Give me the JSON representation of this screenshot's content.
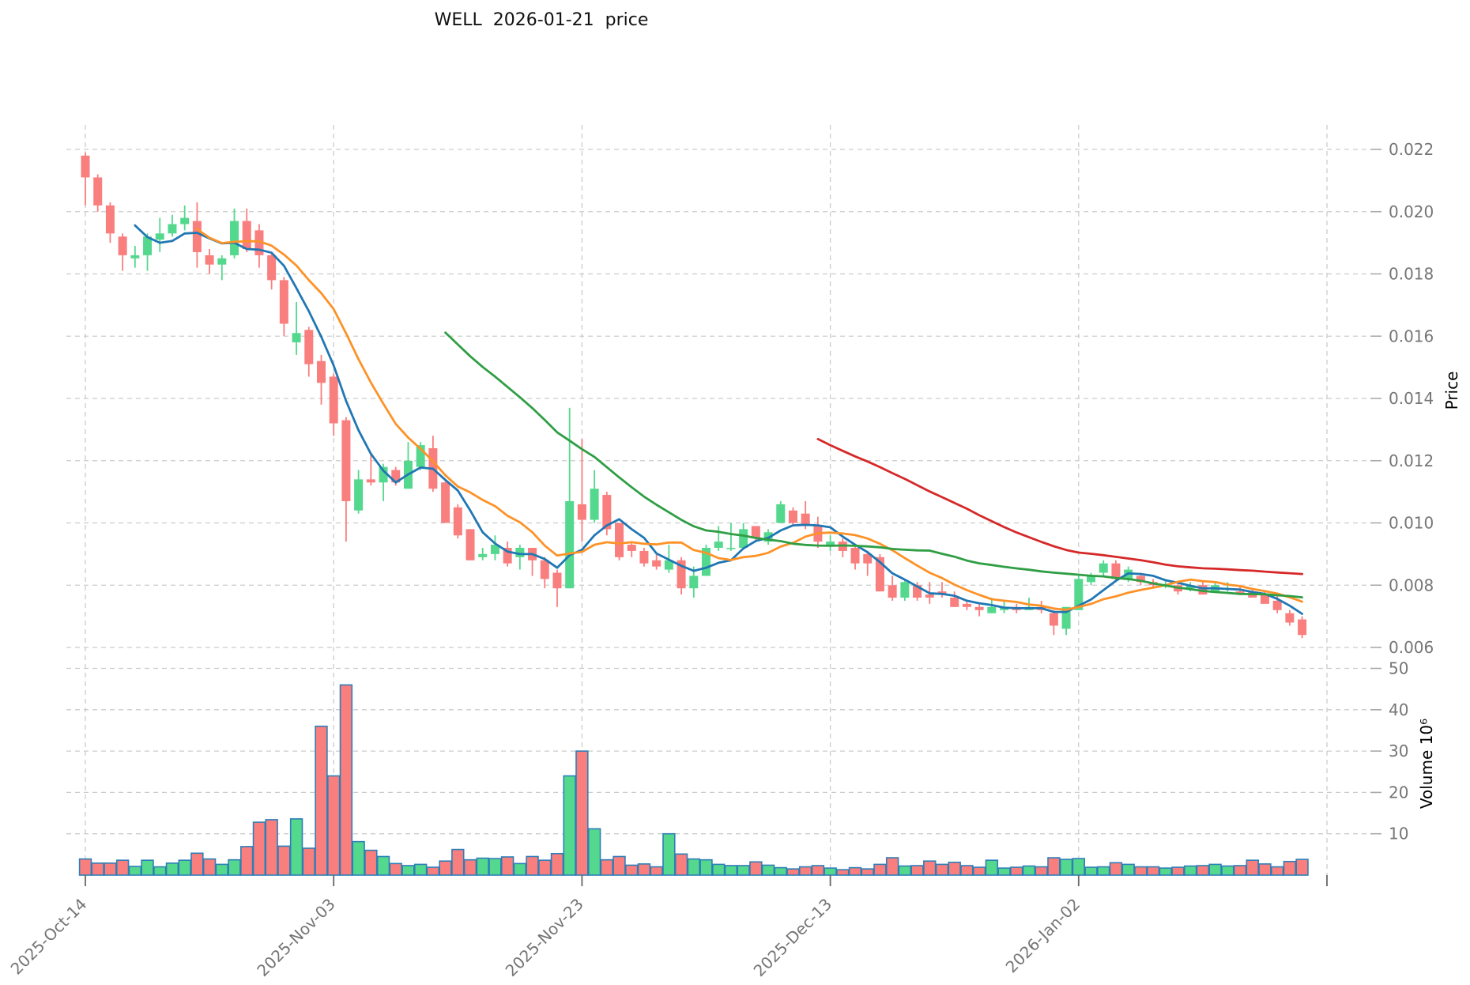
{
  "title": "WELL  2026-01-21  price",
  "axes": {
    "price_label": "Price",
    "volume_label": "Volume 10⁶",
    "price_ticks": [
      "0.022",
      "0.020",
      "0.018",
      "0.016",
      "0.014",
      "0.012",
      "0.010",
      "0.008",
      "0.006"
    ],
    "volume_ticks": [
      "50",
      "40",
      "30",
      "20",
      "10"
    ],
    "x_ticks": [
      {
        "index": 0,
        "label": "2025-Oct-14"
      },
      {
        "index": 20,
        "label": "2025-Nov-03"
      },
      {
        "index": 40,
        "label": "2025-Nov-23"
      },
      {
        "index": 60,
        "label": "2025-Dec-13"
      },
      {
        "index": 80,
        "label": "2026-Jan-02"
      },
      {
        "index": 100,
        "label": ""
      }
    ]
  },
  "chart_data": {
    "type": "candlestick+volume",
    "title": "WELL  2026-01-21  price",
    "ylabel": "Price",
    "ylabel_lower": "Volume 10⁶",
    "price_axis": {
      "tick_values": [
        0.022,
        0.02,
        0.018,
        0.016,
        0.014,
        0.012,
        0.01,
        0.008,
        0.006
      ],
      "grid": true
    },
    "volume_axis": {
      "tick_values": [
        50,
        40,
        30,
        20,
        10
      ],
      "unit": "millions",
      "grid": true
    },
    "legend_position": "none",
    "colors": {
      "up": "#54d88d",
      "down": "#f97e7e",
      "volume_edge": "#2e7eb8",
      "grid": "#cccccc",
      "tick_text": "#757575",
      "title_text": "#111111"
    },
    "moving_averages": [
      {
        "window": 5,
        "color": "#2077b4"
      },
      {
        "window": 10,
        "color": "#fd9227"
      },
      {
        "window": 30,
        "color": "#2f9e44"
      },
      {
        "window": 60,
        "color": "#d62828"
      }
    ],
    "dates": [
      "2025-10-14",
      "2025-10-15",
      "2025-10-16",
      "2025-10-17",
      "2025-10-18",
      "2025-10-19",
      "2025-10-20",
      "2025-10-21",
      "2025-10-22",
      "2025-10-23",
      "2025-10-24",
      "2025-10-25",
      "2025-10-26",
      "2025-10-27",
      "2025-10-28",
      "2025-10-29",
      "2025-10-30",
      "2025-10-31",
      "2025-11-01",
      "2025-11-02",
      "2025-11-03",
      "2025-11-04",
      "2025-11-05",
      "2025-11-06",
      "2025-11-07",
      "2025-11-08",
      "2025-11-09",
      "2025-11-10",
      "2025-11-11",
      "2025-11-12",
      "2025-11-13",
      "2025-11-14",
      "2025-11-15",
      "2025-11-16",
      "2025-11-17",
      "2025-11-18",
      "2025-11-19",
      "2025-11-20",
      "2025-11-21",
      "2025-11-22",
      "2025-11-23",
      "2025-11-24",
      "2025-11-25",
      "2025-11-26",
      "2025-11-27",
      "2025-11-28",
      "2025-11-29",
      "2025-11-30",
      "2025-12-01",
      "2025-12-02",
      "2025-12-03",
      "2025-12-04",
      "2025-12-05",
      "2025-12-06",
      "2025-12-07",
      "2025-12-08",
      "2025-12-09",
      "2025-12-10",
      "2025-12-11",
      "2025-12-12",
      "2025-12-13",
      "2025-12-14",
      "2025-12-15",
      "2025-12-16",
      "2025-12-17",
      "2025-12-18",
      "2025-12-19",
      "2025-12-20",
      "2025-12-21",
      "2025-12-22",
      "2025-12-23",
      "2025-12-24",
      "2025-12-25",
      "2025-12-26",
      "2025-12-27",
      "2025-12-28",
      "2025-12-29",
      "2025-12-30",
      "2025-12-31",
      "2026-01-01",
      "2026-01-02",
      "2026-01-03",
      "2026-01-04",
      "2026-01-05",
      "2026-01-06",
      "2026-01-07",
      "2026-01-08",
      "2026-01-09",
      "2026-01-10",
      "2026-01-11",
      "2026-01-12",
      "2026-01-13",
      "2026-01-14",
      "2026-01-15",
      "2026-01-16",
      "2026-01-17",
      "2026-01-18",
      "2026-01-19",
      "2026-01-20"
    ],
    "ohlc": [
      [
        0.0218,
        0.0219,
        0.0202,
        0.0211
      ],
      [
        0.0211,
        0.0212,
        0.02,
        0.0202
      ],
      [
        0.0202,
        0.0203,
        0.019,
        0.0193
      ],
      [
        0.0192,
        0.0193,
        0.0181,
        0.0186
      ],
      [
        0.0185,
        0.0189,
        0.0182,
        0.0186
      ],
      [
        0.0186,
        0.0193,
        0.0181,
        0.0192
      ],
      [
        0.0191,
        0.0198,
        0.0187,
        0.0193
      ],
      [
        0.0193,
        0.0199,
        0.0192,
        0.0196
      ],
      [
        0.0196,
        0.0202,
        0.0194,
        0.0198
      ],
      [
        0.0197,
        0.0203,
        0.0182,
        0.0187
      ],
      [
        0.0186,
        0.0188,
        0.018,
        0.0183
      ],
      [
        0.0183,
        0.0186,
        0.0178,
        0.0185
      ],
      [
        0.0186,
        0.0201,
        0.0185,
        0.0197
      ],
      [
        0.0197,
        0.0201,
        0.0187,
        0.0188
      ],
      [
        0.0194,
        0.0196,
        0.0182,
        0.0186
      ],
      [
        0.0186,
        0.0187,
        0.0175,
        0.0178
      ],
      [
        0.0178,
        0.0179,
        0.016,
        0.0164
      ],
      [
        0.0158,
        0.0171,
        0.0154,
        0.0161
      ],
      [
        0.0162,
        0.0163,
        0.0147,
        0.0151
      ],
      [
        0.0152,
        0.0154,
        0.0138,
        0.0145
      ],
      [
        0.0147,
        0.0148,
        0.0128,
        0.0132
      ],
      [
        0.0133,
        0.0134,
        0.0094,
        0.0107
      ],
      [
        0.0104,
        0.0117,
        0.0103,
        0.0114
      ],
      [
        0.0114,
        0.0122,
        0.0112,
        0.0113
      ],
      [
        0.0113,
        0.0119,
        0.0107,
        0.0118
      ],
      [
        0.0117,
        0.0118,
        0.0112,
        0.0113
      ],
      [
        0.0111,
        0.0126,
        0.0111,
        0.012
      ],
      [
        0.0118,
        0.0126,
        0.0117,
        0.0125
      ],
      [
        0.0124,
        0.0128,
        0.011,
        0.0111
      ],
      [
        0.0113,
        0.0114,
        0.01,
        0.01
      ],
      [
        0.0105,
        0.0106,
        0.0095,
        0.0096
      ],
      [
        0.0098,
        0.0098,
        0.0088,
        0.0088
      ],
      [
        0.0089,
        0.0092,
        0.0088,
        0.009
      ],
      [
        0.009,
        0.0096,
        0.0088,
        0.0093
      ],
      [
        0.0092,
        0.0094,
        0.0086,
        0.0087
      ],
      [
        0.0089,
        0.0093,
        0.0085,
        0.0092
      ],
      [
        0.0092,
        0.0092,
        0.0083,
        0.0088
      ],
      [
        0.0088,
        0.0089,
        0.0079,
        0.0082
      ],
      [
        0.0084,
        0.0085,
        0.0073,
        0.0079
      ],
      [
        0.0079,
        0.0137,
        0.0079,
        0.0107
      ],
      [
        0.0106,
        0.0127,
        0.0094,
        0.0101
      ],
      [
        0.0101,
        0.0117,
        0.01,
        0.0111
      ],
      [
        0.0109,
        0.011,
        0.0096,
        0.0098
      ],
      [
        0.01,
        0.01,
        0.0088,
        0.0089
      ],
      [
        0.0093,
        0.0094,
        0.0089,
        0.0091
      ],
      [
        0.0091,
        0.0092,
        0.0086,
        0.0087
      ],
      [
        0.0088,
        0.009,
        0.0085,
        0.0086
      ],
      [
        0.0085,
        0.0093,
        0.0084,
        0.0088
      ],
      [
        0.0088,
        0.0089,
        0.0077,
        0.0079
      ],
      [
        0.0079,
        0.0086,
        0.0076,
        0.0083
      ],
      [
        0.0083,
        0.0093,
        0.0083,
        0.0092
      ],
      [
        0.0092,
        0.0099,
        0.0091,
        0.0094
      ],
      [
        0.0092,
        0.01,
        0.0091,
        0.0092
      ],
      [
        0.0092,
        0.01,
        0.0092,
        0.0098
      ],
      [
        0.0099,
        0.0099,
        0.0094,
        0.0095
      ],
      [
        0.0094,
        0.0098,
        0.0093,
        0.0097
      ],
      [
        0.01,
        0.0107,
        0.01,
        0.0106
      ],
      [
        0.0104,
        0.0105,
        0.0099,
        0.01
      ],
      [
        0.0103,
        0.0107,
        0.0098,
        0.0099
      ],
      [
        0.0099,
        0.0102,
        0.0092,
        0.0094
      ],
      [
        0.0093,
        0.0096,
        0.0091,
        0.0094
      ],
      [
        0.0094,
        0.0095,
        0.0089,
        0.0091
      ],
      [
        0.0092,
        0.0093,
        0.0085,
        0.0087
      ],
      [
        0.009,
        0.0091,
        0.0083,
        0.0087
      ],
      [
        0.0089,
        0.009,
        0.0078,
        0.0078
      ],
      [
        0.008,
        0.0083,
        0.0075,
        0.0076
      ],
      [
        0.0076,
        0.0082,
        0.0075,
        0.0081
      ],
      [
        0.008,
        0.0081,
        0.0075,
        0.0076
      ],
      [
        0.0077,
        0.0081,
        0.0074,
        0.0076
      ],
      [
        0.0078,
        0.0081,
        0.0076,
        0.0077
      ],
      [
        0.0076,
        0.0078,
        0.0073,
        0.0073
      ],
      [
        0.0074,
        0.0075,
        0.0072,
        0.0073
      ],
      [
        0.0073,
        0.0074,
        0.007,
        0.0072
      ],
      [
        0.0071,
        0.0076,
        0.0071,
        0.0073
      ],
      [
        0.0072,
        0.0075,
        0.0071,
        0.0073
      ],
      [
        0.0073,
        0.0074,
        0.0071,
        0.0072
      ],
      [
        0.0072,
        0.0076,
        0.0072,
        0.0073
      ],
      [
        0.0073,
        0.0075,
        0.0071,
        0.0072
      ],
      [
        0.0071,
        0.0072,
        0.0064,
        0.0067
      ],
      [
        0.0066,
        0.0073,
        0.0064,
        0.0073
      ],
      [
        0.0072,
        0.0083,
        0.0072,
        0.0082
      ],
      [
        0.0081,
        0.0084,
        0.008,
        0.0083
      ],
      [
        0.0084,
        0.0088,
        0.0083,
        0.0087
      ],
      [
        0.0087,
        0.0088,
        0.0081,
        0.0082
      ],
      [
        0.0082,
        0.0086,
        0.0081,
        0.0085
      ],
      [
        0.0083,
        0.0084,
        0.008,
        0.0081
      ],
      [
        0.0081,
        0.0082,
        0.0079,
        0.008
      ],
      [
        0.008,
        0.0082,
        0.0079,
        0.008
      ],
      [
        0.008,
        0.0081,
        0.0077,
        0.0078
      ],
      [
        0.0079,
        0.0081,
        0.0078,
        0.008
      ],
      [
        0.008,
        0.0081,
        0.0077,
        0.0077
      ],
      [
        0.0078,
        0.0081,
        0.0078,
        0.008
      ],
      [
        0.0079,
        0.0081,
        0.0078,
        0.0079
      ],
      [
        0.0078,
        0.008,
        0.0077,
        0.0077
      ],
      [
        0.0078,
        0.0079,
        0.0076,
        0.0076
      ],
      [
        0.0077,
        0.0078,
        0.0074,
        0.0074
      ],
      [
        0.0075,
        0.0077,
        0.0071,
        0.0072
      ],
      [
        0.0071,
        0.0072,
        0.0067,
        0.0068
      ],
      [
        0.0069,
        0.007,
        0.0063,
        0.0064
      ]
    ],
    "volume_millions": [
      3.9,
      2.9,
      2.9,
      3.6,
      2.1,
      3.6,
      2.0,
      2.9,
      3.6,
      5.3,
      3.9,
      2.6,
      3.7,
      6.9,
      12.8,
      13.4,
      7.0,
      13.6,
      6.5,
      36.0,
      24.0,
      46.0,
      8.1,
      6.0,
      4.5,
      2.8,
      2.3,
      2.6,
      1.9,
      3.4,
      6.2,
      3.7,
      4.1,
      4.0,
      4.4,
      2.8,
      4.5,
      3.6,
      5.2,
      24.0,
      30.0,
      11.2,
      3.7,
      4.5,
      2.4,
      2.7,
      2.0,
      10.0,
      5.1,
      3.9,
      3.7,
      2.6,
      2.3,
      2.3,
      3.2,
      2.4,
      1.8,
      1.5,
      2.0,
      2.3,
      1.7,
      1.3,
      1.8,
      1.5,
      2.6,
      4.2,
      2.2,
      2.3,
      3.4,
      2.6,
      3.1,
      2.3,
      1.9,
      3.6,
      1.7,
      1.9,
      2.2,
      2.0,
      4.2,
      3.8,
      4.0,
      1.9,
      2.0,
      3.0,
      2.6,
      2.0,
      2.0,
      1.7,
      1.9,
      2.2,
      2.3,
      2.6,
      2.2,
      2.3,
      3.6,
      2.7,
      2.0,
      3.3,
      3.8
    ]
  }
}
